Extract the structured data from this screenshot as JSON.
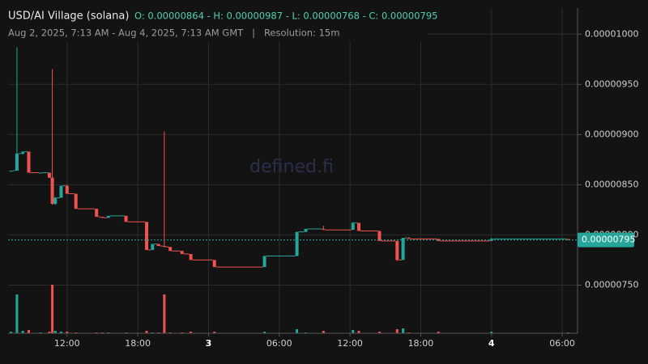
{
  "chart_data": {
    "type": "candlestick",
    "title": "USD/AI Village (solana)",
    "ohlc_text": "O: 0.00000864 - H: 0.00000987 - L: 0.00000768 - C: 0.00000795",
    "subtitle": "Aug 2, 2025, 7:13 AM - Aug 4, 2025, 7:13 AM GMT   |   Resolution: 15m",
    "watermark": "defined.fi",
    "up_color": "#26a69a",
    "down_color": "#ef5350",
    "grid": true,
    "x": [
      7.25,
      7.75,
      8.25,
      8.75,
      9.75,
      10.5,
      10.75,
      11.0,
      11.5,
      12.0,
      12.75,
      14.5,
      15.0,
      15.5,
      17.0,
      18.75,
      19.25,
      19.75,
      20.25,
      20.75,
      21.75,
      22.5,
      24.5,
      28.75,
      31.5,
      32.25,
      33.75,
      36.25,
      36.75,
      38.5,
      40.0,
      40.5,
      41.0,
      43.5,
      48.0,
      54.5
    ],
    "open": [
      8.64e-06,
      8.64e-06,
      8.81e-06,
      8.83e-06,
      8.62e-06,
      8.62e-06,
      8.57e-06,
      8.31e-06,
      8.37e-06,
      8.49e-06,
      8.41e-06,
      8.26e-06,
      8.18e-06,
      8.17e-06,
      8.19e-06,
      8.13e-06,
      7.85e-06,
      7.91e-06,
      7.89e-06,
      7.88e-06,
      7.84e-06,
      7.81e-06,
      7.75e-06,
      7.68e-06,
      7.79e-06,
      8.03e-06,
      8.06e-06,
      8.05e-06,
      8.12e-06,
      8.04e-06,
      7.94e-06,
      7.75e-06,
      7.97e-06,
      7.96e-06,
      7.94e-06,
      7.96e-06
    ],
    "high": [
      8.64e-06,
      9.87e-06,
      8.83e-06,
      8.83e-06,
      8.62e-06,
      8.62e-06,
      9.65e-06,
      8.38e-06,
      8.49e-06,
      8.5e-06,
      8.41e-06,
      8.26e-06,
      8.18e-06,
      8.19e-06,
      8.19e-06,
      8.13e-06,
      7.91e-06,
      7.91e-06,
      9.03e-06,
      7.88e-06,
      7.84e-06,
      7.81e-06,
      7.75e-06,
      7.79e-06,
      8.03e-06,
      8.06e-06,
      8.09e-06,
      8.13e-06,
      8.12e-06,
      8.04e-06,
      7.94e-06,
      7.97e-06,
      7.98e-06,
      7.96e-06,
      7.97e-06,
      7.96e-06
    ],
    "low": [
      8.64e-06,
      8.64e-06,
      8.8e-06,
      8.62e-06,
      8.61e-06,
      8.57e-06,
      8.3e-06,
      8.3e-06,
      8.37e-06,
      8.41e-06,
      8.26e-06,
      8.18e-06,
      8.17e-06,
      8.17e-06,
      8.13e-06,
      7.85e-06,
      7.85e-06,
      7.89e-06,
      7.88e-06,
      7.84e-06,
      7.81e-06,
      7.75e-06,
      7.68e-06,
      7.68e-06,
      7.79e-06,
      8.03e-06,
      8.05e-06,
      8.05e-06,
      8.04e-06,
      7.94e-06,
      7.74e-06,
      7.75e-06,
      7.96e-06,
      7.94e-06,
      7.94e-06,
      7.95e-06
    ],
    "close": [
      8.64e-06,
      8.81e-06,
      8.83e-06,
      8.62e-06,
      8.62e-06,
      8.57e-06,
      8.31e-06,
      8.37e-06,
      8.49e-06,
      8.41e-06,
      8.26e-06,
      8.18e-06,
      8.17e-06,
      8.19e-06,
      8.13e-06,
      7.85e-06,
      7.91e-06,
      7.89e-06,
      7.88e-06,
      7.84e-06,
      7.81e-06,
      7.75e-06,
      7.68e-06,
      7.79e-06,
      8.03e-06,
      8.06e-06,
      8.05e-06,
      8.12e-06,
      8.04e-06,
      7.94e-06,
      7.75e-06,
      7.97e-06,
      7.96e-06,
      7.94e-06,
      7.96e-06,
      7.95e-06
    ],
    "volume": [
      2,
      48,
      3,
      4,
      1,
      2,
      60,
      3,
      2,
      2,
      1,
      1,
      1,
      1,
      1,
      3,
      1,
      1,
      48,
      1,
      1,
      2,
      2,
      2,
      5,
      1,
      3,
      4,
      3,
      2,
      5,
      6,
      1,
      2,
      2,
      1
    ],
    "xlim": [
      7,
      55.3
    ],
    "xticks": [
      {
        "value": 12,
        "label": "12:00"
      },
      {
        "value": 18,
        "label": "18:00"
      },
      {
        "value": 24,
        "label": "3"
      },
      {
        "value": 30,
        "label": "06:00"
      },
      {
        "value": 36,
        "label": "12:00"
      },
      {
        "value": 42,
        "label": "18:00"
      },
      {
        "value": 48,
        "label": "4"
      },
      {
        "value": 54,
        "label": "06:00"
      }
    ],
    "ylim": [
      7.02e-06,
      1.026e-05
    ],
    "yticks": [
      {
        "value": 7.5e-06,
        "label": "0.00000750"
      },
      {
        "value": 8e-06,
        "label": "0.00000800"
      },
      {
        "value": 8.5e-06,
        "label": "0.00000850"
      },
      {
        "value": 9e-06,
        "label": "0.00000900"
      },
      {
        "value": 9.5e-06,
        "label": "0.00000950"
      },
      {
        "value": 1e-05,
        "label": "0.00001000"
      }
    ],
    "last_price": {
      "value": 7.95e-06,
      "label": "0.00000795"
    }
  }
}
